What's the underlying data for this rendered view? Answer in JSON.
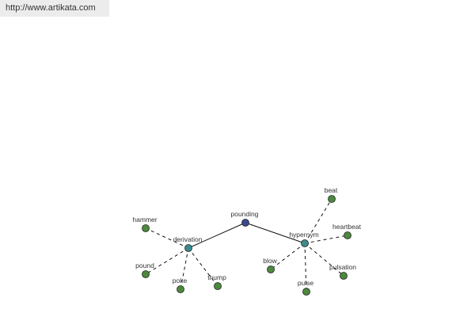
{
  "header": {
    "url": "http://www.artikata.com"
  },
  "nodes": [
    {
      "label": "pounding"
    },
    {
      "label": "derivation"
    },
    {
      "label": "hypernym"
    },
    {
      "label": "hammer"
    },
    {
      "label": "pound"
    },
    {
      "label": "poke"
    },
    {
      "label": "thump"
    },
    {
      "label": "beat"
    },
    {
      "label": "heartbeat"
    },
    {
      "label": "blow"
    },
    {
      "label": "pulse"
    },
    {
      "label": "pulsation"
    }
  ]
}
